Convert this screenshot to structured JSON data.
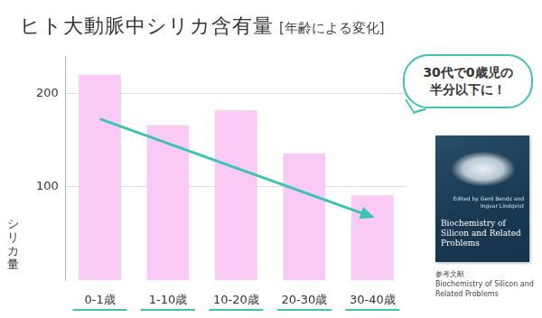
{
  "chart_data": {
    "type": "bar",
    "title": "ヒト大動脈中シリカ含有量",
    "subtitle": "[年齢による変化]",
    "y_label": "シリカ量",
    "categories": [
      "0-1歳",
      "1-10歳",
      "10-20歳",
      "20-30歳",
      "30-40歳"
    ],
    "values": [
      220,
      166,
      182,
      136,
      91
    ],
    "color": "#f9caf3",
    "ylim": [
      0,
      240
    ],
    "yticks": [
      100,
      200
    ],
    "grid": true,
    "annotations": {
      "callout": [
        "30代で0歳児の",
        "半分以下に！"
      ],
      "cover_editors": "Edited by Gerd Bendz and Ingvar Lindqvist",
      "cover_title": "Biochemistry of Silicon and Related Problems",
      "reference_label": "参考文献",
      "reference": "Biochemistry of Silicon and Related Problems"
    }
  }
}
